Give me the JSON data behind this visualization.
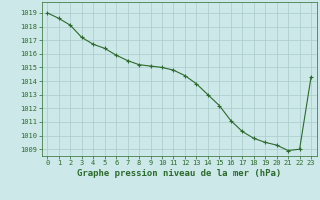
{
  "x": [
    0,
    1,
    2,
    3,
    4,
    5,
    6,
    7,
    8,
    9,
    10,
    11,
    12,
    13,
    14,
    15,
    16,
    17,
    18,
    19,
    20,
    21,
    22,
    23
  ],
  "y": [
    1019.0,
    1018.6,
    1018.1,
    1017.2,
    1016.7,
    1016.4,
    1015.9,
    1015.5,
    1015.2,
    1015.1,
    1015.0,
    1014.8,
    1014.4,
    1013.8,
    1013.0,
    1012.2,
    1011.1,
    1010.3,
    1009.8,
    1009.5,
    1009.3,
    1008.9,
    1009.0,
    1014.3
  ],
  "line_color": "#2d6a2d",
  "marker": "+",
  "marker_size": 3,
  "marker_lw": 0.8,
  "line_width": 0.8,
  "bg_color": "#cce8e8",
  "grid_color": "#aacccc",
  "ylabel_ticks": [
    1009,
    1010,
    1011,
    1012,
    1013,
    1014,
    1015,
    1016,
    1017,
    1018,
    1019
  ],
  "ylim": [
    1008.5,
    1019.8
  ],
  "xlim": [
    -0.5,
    23.5
  ],
  "xlabel": "Graphe pression niveau de la mer (hPa)",
  "xlabel_fontsize": 6.5,
  "tick_fontsize": 5,
  "title_color": "#2d6a2d",
  "spine_color": "#2d6a2d"
}
